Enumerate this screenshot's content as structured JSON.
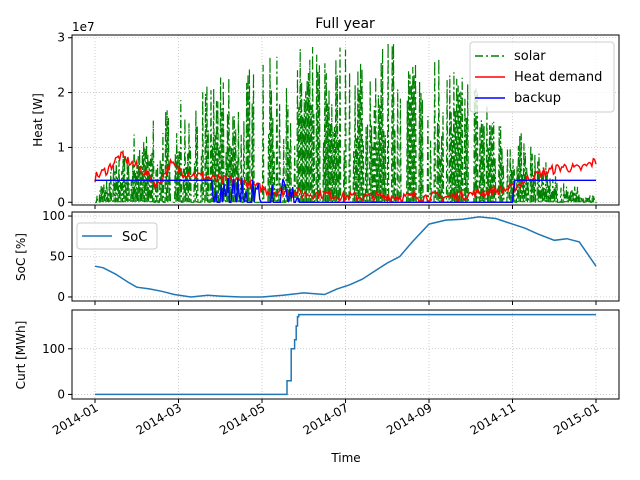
{
  "figure": {
    "title": "Full year",
    "xlabel": "Time",
    "x_ticks": [
      "2014-01",
      "2014-03",
      "2014-05",
      "2014-07",
      "2014-09",
      "2014-11",
      "2015-01"
    ],
    "colors": {
      "solar": "#008000",
      "heat": "#ff0000",
      "backup": "#0000ff",
      "soc": "#1f77b4",
      "curt": "#1f77b4"
    }
  },
  "chart_data": [
    {
      "type": "line",
      "title": "Full year",
      "ylabel": "Heat [W]",
      "y_offset_label": "1e7",
      "y_ticks": [
        "0",
        "1",
        "2",
        "3"
      ],
      "ylim": [
        -0.05,
        3.05
      ],
      "y_unit_scale": "1e7 W",
      "grid": true,
      "legend": "top-right",
      "x_months": [
        0,
        1,
        2,
        3,
        4,
        5,
        6,
        7,
        8,
        9,
        10,
        11,
        12
      ],
      "series": [
        {
          "name": "solar",
          "style": "dashdot",
          "color": "#008000",
          "monthly_peak_values_1e7W": [
            0.2,
            1.4,
            2.0,
            2.3,
            2.6,
            2.9,
            3.0,
            3.0,
            2.9,
            2.4,
            1.6,
            0.5,
            0.1
          ]
        },
        {
          "name": "Heat demand",
          "style": "solid",
          "color": "#ff0000",
          "x_months": [
            0,
            0.3,
            0.6,
            0.9,
            1.2,
            1.5,
            1.8,
            2.1,
            2.4,
            2.7,
            3.0,
            3.4,
            3.8,
            4.2,
            4.6,
            5.0,
            5.5,
            6.0,
            6.5,
            7.0,
            7.5,
            8.0,
            8.5,
            9.0,
            9.5,
            10.0,
            10.4,
            10.8,
            11.2,
            11.6,
            12.0
          ],
          "values_1e7W": [
            0.45,
            0.6,
            0.85,
            0.7,
            0.55,
            0.3,
            0.7,
            0.55,
            0.5,
            0.45,
            0.4,
            0.4,
            0.3,
            0.2,
            0.2,
            0.15,
            0.15,
            0.1,
            0.1,
            0.1,
            0.1,
            0.1,
            0.1,
            0.15,
            0.2,
            0.25,
            0.45,
            0.55,
            0.65,
            0.6,
            0.75
          ]
        },
        {
          "name": "backup",
          "style": "solid",
          "color": "#0000ff",
          "x_months": [
            0,
            2.9,
            3.0,
            3.6,
            3.7,
            4.2,
            4.3,
            4.8,
            4.9,
            10.0,
            10.05,
            12.0
          ],
          "values_1e7W": [
            0.4,
            0.4,
            0.0,
            0.4,
            0.0,
            0.35,
            0.05,
            0.4,
            0.0,
            0.0,
            0.4,
            0.4
          ]
        }
      ]
    },
    {
      "type": "line",
      "ylabel": "SoC [%]",
      "y_ticks": [
        "0",
        "50",
        "100"
      ],
      "ylim": [
        -5,
        105
      ],
      "grid": true,
      "legend": "top-left",
      "series": [
        {
          "name": "SoC",
          "color": "#1f77b4",
          "x_months": [
            0,
            0.2,
            0.5,
            0.8,
            1.0,
            1.3,
            1.6,
            1.9,
            2.3,
            2.7,
            3.0,
            3.5,
            4.0,
            4.5,
            5.0,
            5.5,
            5.8,
            6.1,
            6.4,
            6.7,
            7.0,
            7.3,
            7.6,
            8.0,
            8.4,
            8.8,
            9.2,
            9.6,
            10.0,
            10.3,
            10.6,
            11.0,
            11.3,
            11.6,
            12.0
          ],
          "values": [
            38,
            36,
            28,
            18,
            12,
            10,
            7,
            3,
            0,
            2,
            1,
            0,
            0,
            2,
            5,
            3,
            10,
            15,
            22,
            32,
            42,
            50,
            68,
            90,
            95,
            96,
            99,
            97,
            90,
            85,
            78,
            70,
            72,
            68,
            38
          ]
        }
      ]
    },
    {
      "type": "line",
      "ylabel": "Curt [MWh]",
      "y_ticks": [
        "0",
        "100"
      ],
      "ylim": [
        -10,
        185
      ],
      "grid": true,
      "series": [
        {
          "color": "#1f77b4",
          "x_months": [
            0,
            4.55,
            4.6,
            4.7,
            4.75,
            4.78,
            4.82,
            4.85,
            4.88,
            12.0
          ],
          "values": [
            0,
            0,
            30,
            100,
            100,
            120,
            150,
            170,
            175,
            175
          ]
        }
      ]
    }
  ]
}
